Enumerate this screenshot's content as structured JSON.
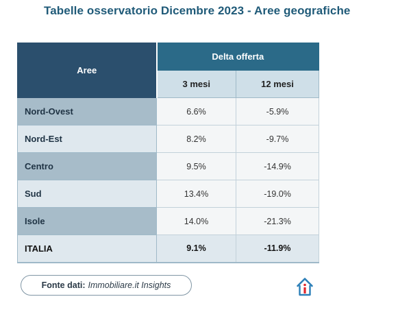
{
  "title": "Tabelle osservatorio Dicembre 2023 - Aree geografiche",
  "table": {
    "area_header": "Aree",
    "group_header": "Delta offerta",
    "sub_headers": [
      "3 mesi",
      "12 mesi"
    ],
    "rows": [
      {
        "area": "Nord-Ovest",
        "m3": "6.6%",
        "m12": "-5.9%"
      },
      {
        "area": "Nord-Est",
        "m3": "8.2%",
        "m12": "-9.7%"
      },
      {
        "area": "Centro",
        "m3": "9.5%",
        "m12": "-14.9%"
      },
      {
        "area": "Sud",
        "m3": "13.4%",
        "m12": "-19.0%"
      },
      {
        "area": "Isole",
        "m3": "14.0%",
        "m12": "-21.3%"
      }
    ],
    "total": {
      "area": "ITALIA",
      "m3": "9.1%",
      "m12": "-11.9%"
    }
  },
  "source": {
    "label": "Fonte dati:",
    "name": "Immobiliare.it Insights"
  },
  "logo_icon": "house-logo-icon",
  "colors": {
    "title": "#1f5a78",
    "header_dark": "#2b4f6d",
    "header_teal": "#2b6a88",
    "logo_blue": "#2c7fb8",
    "logo_red": "#e2252b"
  }
}
